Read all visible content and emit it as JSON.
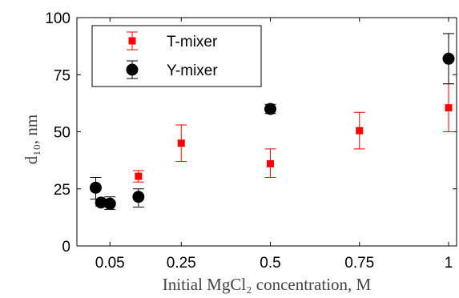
{
  "chart_data": {
    "type": "scatter",
    "xlabel": "Initial MgCl₂ concentration, M",
    "ylabel": "d₁₀, nm",
    "xlim": [
      0.0,
      1.0
    ],
    "ylim": [
      0,
      100
    ],
    "x_ticks": [
      {
        "value": 0.05,
        "label": "0.05"
      },
      {
        "value": 0.25,
        "label": "0.25"
      },
      {
        "value": 0.5,
        "label": "0.5"
      },
      {
        "value": 0.75,
        "label": "0.75"
      },
      {
        "value": 1.0,
        "label": "1"
      }
    ],
    "y_ticks": [
      {
        "value": 0,
        "label": "0"
      },
      {
        "value": 25,
        "label": "25"
      },
      {
        "value": 50,
        "label": "50"
      },
      {
        "value": 75,
        "label": "75"
      },
      {
        "value": 100,
        "label": "100"
      }
    ],
    "grid": false,
    "legend_position": "top-left",
    "series": [
      {
        "name": "T-mixer",
        "color": "#ff0000",
        "marker": "square",
        "points": [
          {
            "x": 0.13,
            "y": 30.5,
            "low": 28.0,
            "high": 33.0
          },
          {
            "x": 0.25,
            "y": 45.0,
            "low": 37.0,
            "high": 53.0
          },
          {
            "x": 0.5,
            "y": 36.0,
            "low": 30.0,
            "high": 42.5
          },
          {
            "x": 0.75,
            "y": 50.5,
            "low": 42.5,
            "high": 58.5
          },
          {
            "x": 1.0,
            "y": 60.5,
            "low": 50.0,
            "high": 71.0
          }
        ]
      },
      {
        "name": "Y-mixer",
        "color": "#000000",
        "marker": "circle",
        "points": [
          {
            "x": 0.01,
            "y": 25.5,
            "low": 20.5,
            "high": 30.0
          },
          {
            "x": 0.025,
            "y": 19.0,
            "low": 17.5,
            "high": 20.5
          },
          {
            "x": 0.05,
            "y": 18.5,
            "low": 16.0,
            "high": 21.5
          },
          {
            "x": 0.13,
            "y": 21.5,
            "low": 17.0,
            "high": 25.0
          },
          {
            "x": 0.5,
            "y": 60.0,
            "low": 58.0,
            "high": 62.0
          },
          {
            "x": 1.0,
            "y": 82.0,
            "low": 71.0,
            "high": 93.0
          }
        ]
      }
    ]
  }
}
